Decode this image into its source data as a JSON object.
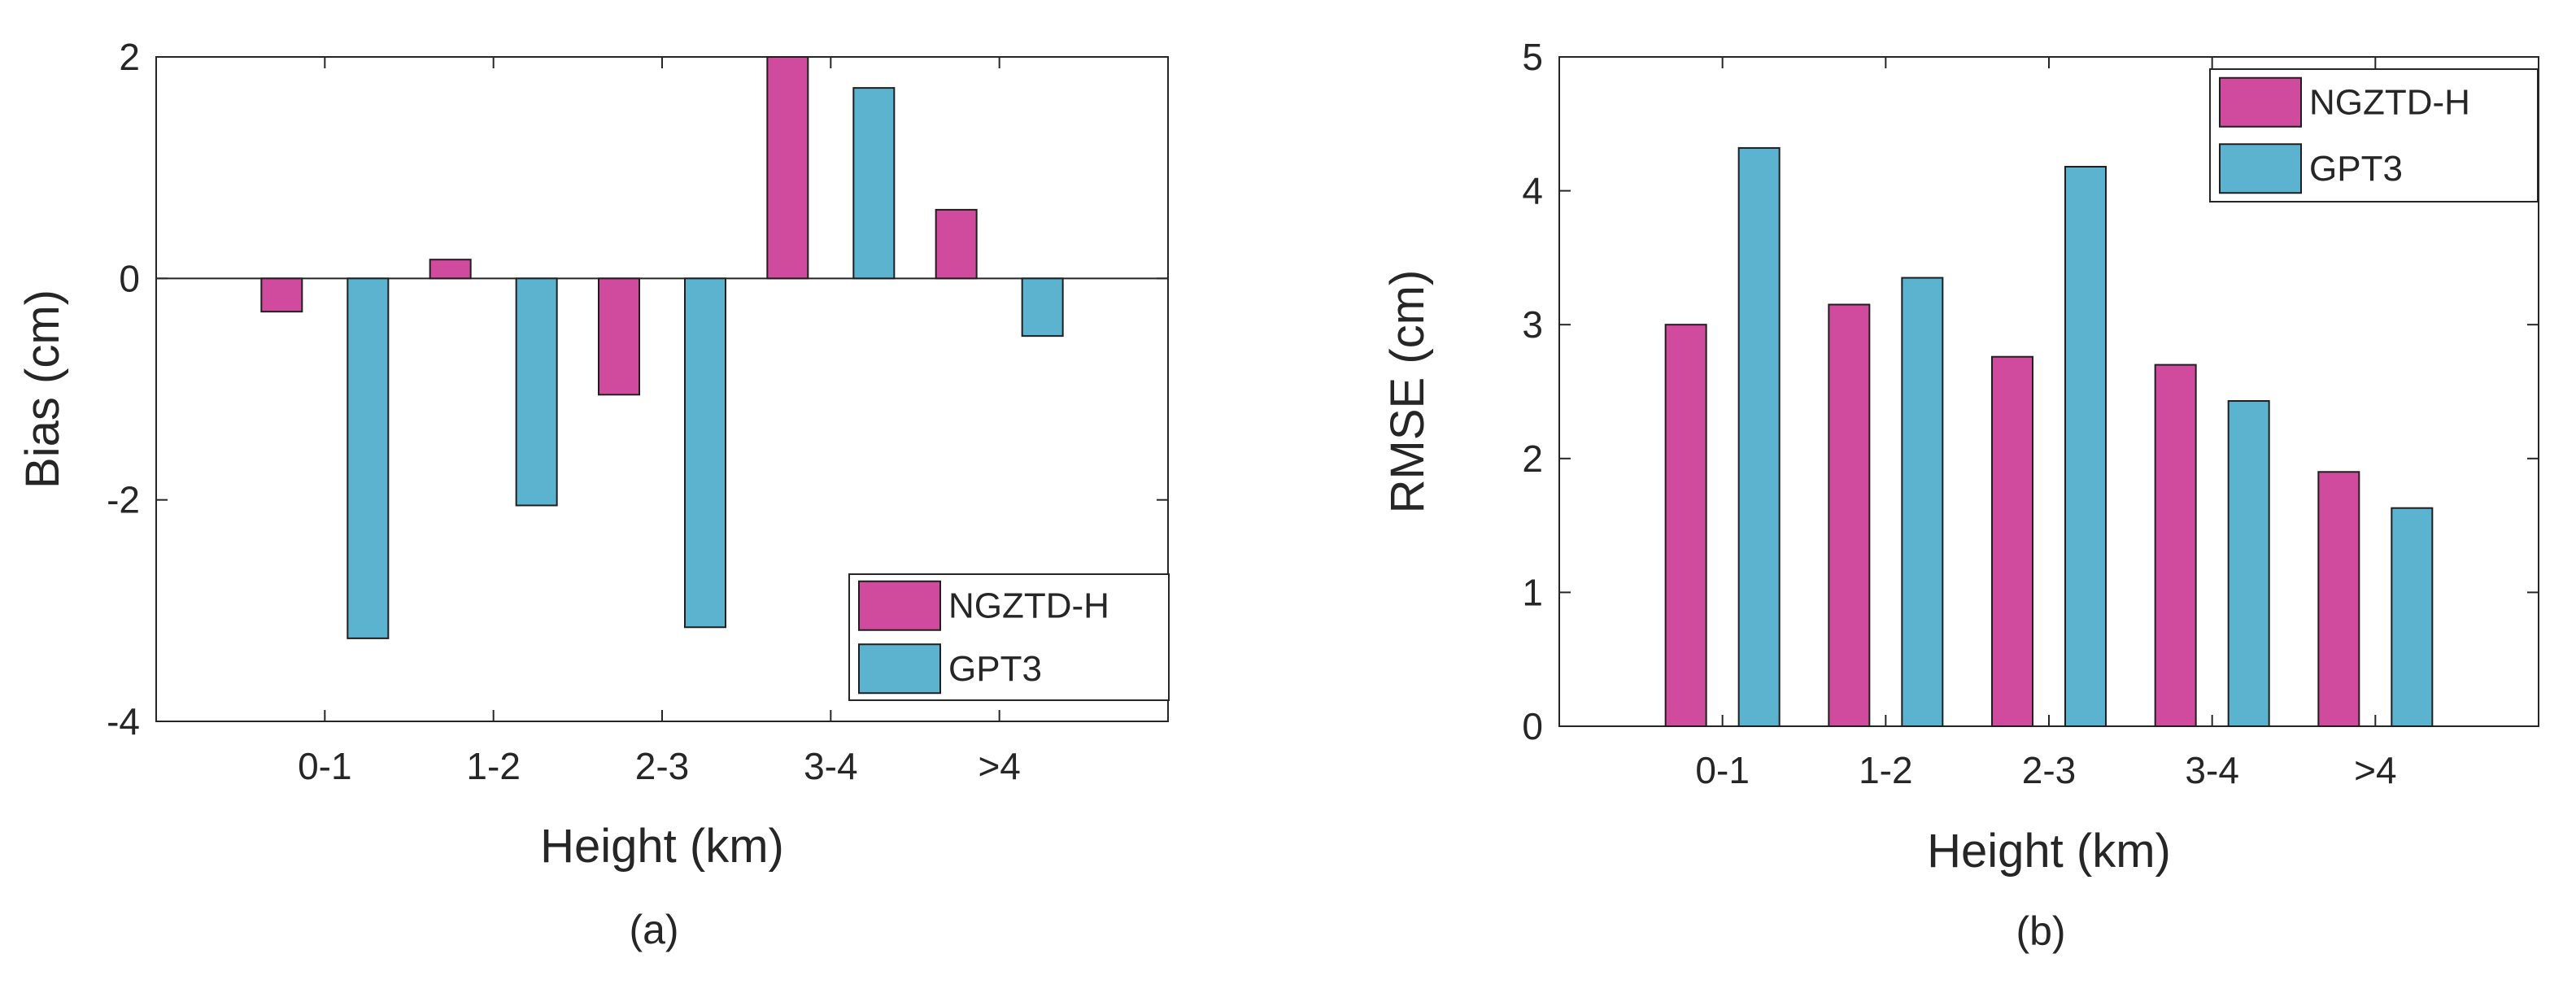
{
  "chart_data": [
    {
      "type": "bar",
      "panel": "a",
      "caption": "(a)",
      "xlabel": "Height (km)",
      "ylabel": "Bias (cm)",
      "ylim": [
        -4,
        2
      ],
      "yticks": [
        -4,
        -2,
        0,
        2
      ],
      "ytick_labels": [
        "-4",
        "-2",
        "0",
        "2"
      ],
      "categories": [
        "0-1",
        "1-2",
        "2-3",
        "3-4",
        ">4"
      ],
      "series": [
        {
          "name": "NGZTD-H",
          "color": "#d04a9e",
          "values": [
            -0.3,
            0.17,
            -1.05,
            2.0,
            0.62
          ]
        },
        {
          "name": "GPT3",
          "color": "#5bb3cf",
          "values": [
            -3.25,
            -2.05,
            -3.15,
            1.72,
            -0.52
          ]
        }
      ],
      "legend_position": "bottom-right",
      "grid": false
    },
    {
      "type": "bar",
      "panel": "b",
      "caption": "(b)",
      "xlabel": "Height (km)",
      "ylabel": "RMSE (cm)",
      "ylim": [
        0,
        5
      ],
      "yticks": [
        0,
        1,
        2,
        3,
        4,
        5
      ],
      "ytick_labels": [
        "0",
        "1",
        "2",
        "3",
        "4",
        "5"
      ],
      "categories": [
        "0-1",
        "1-2",
        "2-3",
        "3-4",
        ">4"
      ],
      "series": [
        {
          "name": "NGZTD-H",
          "color": "#d04a9e",
          "values": [
            3.0,
            3.15,
            2.76,
            2.7,
            1.9
          ]
        },
        {
          "name": "GPT3",
          "color": "#5bb3cf",
          "values": [
            4.32,
            3.35,
            4.18,
            2.43,
            1.63
          ]
        }
      ],
      "legend_position": "top-right",
      "grid": false
    }
  ]
}
